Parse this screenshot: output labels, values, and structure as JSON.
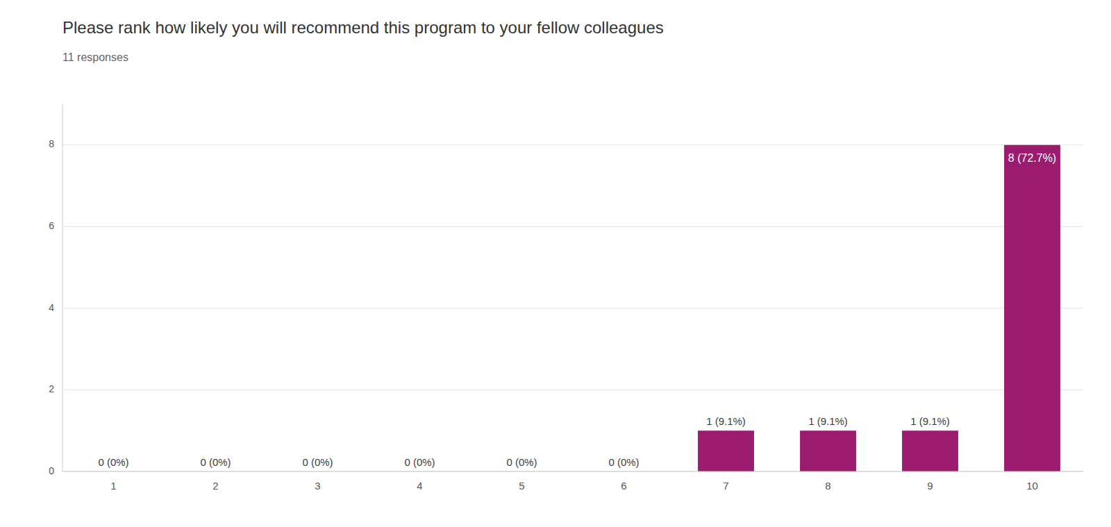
{
  "chart_data": {
    "type": "bar",
    "title": "Please rank how likely you will recommend this program to your fellow colleagues",
    "subtitle": "11 responses",
    "categories": [
      1,
      2,
      3,
      4,
      5,
      6,
      7,
      8,
      9,
      10
    ],
    "values": [
      0,
      0,
      0,
      0,
      0,
      0,
      1,
      1,
      1,
      8
    ],
    "value_labels": [
      "0 (0%)",
      "0 (0%)",
      "0 (0%)",
      "0 (0%)",
      "0 (0%)",
      "0 (0%)",
      "1 (9.1%)",
      "1 (9.1%)",
      "1 (9.1%)",
      "8 (72.7%)"
    ],
    "color": "#9b1b6e",
    "ylim": [
      0,
      9
    ],
    "yticks": [
      0,
      2,
      4,
      6,
      8
    ],
    "grid": true,
    "data_labels": true
  }
}
